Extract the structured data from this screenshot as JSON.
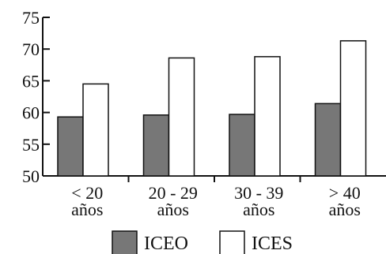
{
  "chart_data": {
    "type": "bar",
    "title": "",
    "xlabel": "",
    "ylabel": "",
    "ylim": [
      50,
      75
    ],
    "yticks": [
      50,
      55,
      60,
      65,
      70,
      75
    ],
    "categories": [
      [
        "< 20",
        "años"
      ],
      [
        "20 - 29",
        "años"
      ],
      [
        "30 - 39",
        "años"
      ],
      [
        "> 40",
        "años"
      ]
    ],
    "series": [
      {
        "name": "ICEO",
        "color": "#777777",
        "values": [
          59.3,
          59.6,
          59.7,
          61.4
        ]
      },
      {
        "name": "ICES",
        "color": "#ffffff",
        "values": [
          64.5,
          68.6,
          68.8,
          71.3
        ]
      }
    ],
    "grid": false,
    "legend": {
      "placement": "bottom"
    }
  }
}
